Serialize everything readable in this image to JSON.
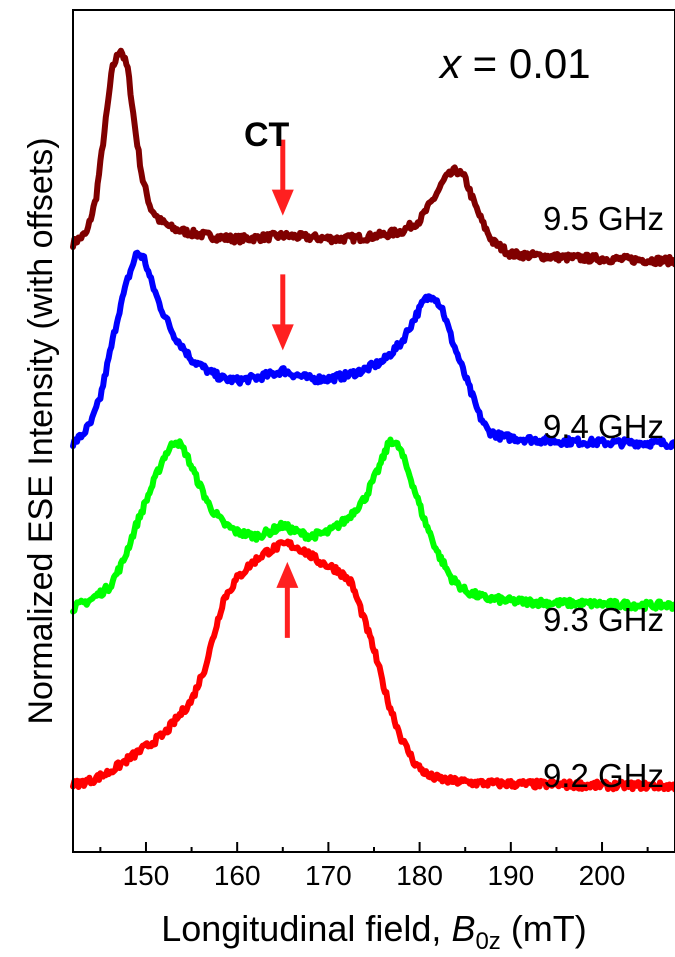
{
  "chart_data": {
    "type": "line",
    "xlabel": "Longitudinal field, ",
    "xlabel_var": "B",
    "xlabel_sub": "0z",
    "xlabel_unit": " (mT)",
    "ylabel": "Normalized ESE Intensity (with offsets)",
    "xlim": [
      142,
      208
    ],
    "ylim": [
      0,
      1
    ],
    "x_ticks": [
      "150",
      "160",
      "170",
      "180",
      "190",
      "200"
    ],
    "x_tick_values": [
      150,
      160,
      170,
      180,
      190,
      200
    ],
    "y_ticks": [],
    "grid": false,
    "composition_label": "x = 0.01",
    "composition_var": "x",
    "composition_value": " = 0.01",
    "ct_label": "CT",
    "ct_field": 165,
    "series": [
      {
        "name": "9.5 GHz",
        "color": "#800000",
        "points": [
          [
            142,
            0.723
          ],
          [
            143.5,
            0.735
          ],
          [
            144.5,
            0.775
          ],
          [
            145.5,
            0.86
          ],
          [
            146.3,
            0.93
          ],
          [
            147.2,
            0.955
          ],
          [
            148,
            0.93
          ],
          [
            148.8,
            0.86
          ],
          [
            149.6,
            0.8
          ],
          [
            150.5,
            0.765
          ],
          [
            151.5,
            0.75
          ],
          [
            153,
            0.74
          ],
          [
            155,
            0.735
          ],
          [
            158,
            0.73
          ],
          [
            160,
            0.728
          ],
          [
            163,
            0.73
          ],
          [
            165,
            0.732
          ],
          [
            168,
            0.73
          ],
          [
            171,
            0.728
          ],
          [
            174,
            0.73
          ],
          [
            176,
            0.733
          ],
          [
            178,
            0.737
          ],
          [
            180,
            0.75
          ],
          [
            181.5,
            0.775
          ],
          [
            182.8,
            0.8
          ],
          [
            184,
            0.81
          ],
          [
            185,
            0.8
          ],
          [
            186,
            0.77
          ],
          [
            187,
            0.745
          ],
          [
            188,
            0.725
          ],
          [
            190,
            0.71
          ],
          [
            193,
            0.708
          ],
          [
            196,
            0.706
          ],
          [
            199,
            0.705
          ],
          [
            202,
            0.704
          ],
          [
            205,
            0.703
          ],
          [
            208,
            0.702
          ]
        ]
      },
      {
        "name": "9.4 GHz",
        "color": "#0000ff",
        "points": [
          [
            142,
            0.485
          ],
          [
            143,
            0.495
          ],
          [
            144,
            0.51
          ],
          [
            145,
            0.54
          ],
          [
            146,
            0.59
          ],
          [
            147,
            0.64
          ],
          [
            148,
            0.68
          ],
          [
            149,
            0.712
          ],
          [
            149.8,
            0.705
          ],
          [
            150.5,
            0.68
          ],
          [
            151.5,
            0.65
          ],
          [
            153,
            0.615
          ],
          [
            155,
            0.585
          ],
          [
            157,
            0.57
          ],
          [
            158.5,
            0.562
          ],
          [
            160,
            0.56
          ],
          [
            162,
            0.563
          ],
          [
            164,
            0.568
          ],
          [
            165,
            0.572
          ],
          [
            166,
            0.568
          ],
          [
            168,
            0.562
          ],
          [
            170,
            0.562
          ],
          [
            172,
            0.566
          ],
          [
            174,
            0.573
          ],
          [
            176,
            0.583
          ],
          [
            178,
            0.605
          ],
          [
            179.5,
            0.635
          ],
          [
            180.5,
            0.655
          ],
          [
            181.5,
            0.662
          ],
          [
            182.5,
            0.645
          ],
          [
            183.5,
            0.61
          ],
          [
            185,
            0.565
          ],
          [
            186.5,
            0.52
          ],
          [
            187.5,
            0.5
          ],
          [
            189,
            0.493
          ],
          [
            192,
            0.49
          ],
          [
            195,
            0.488
          ],
          [
            198,
            0.487
          ],
          [
            201,
            0.486
          ],
          [
            204,
            0.486
          ],
          [
            208,
            0.485
          ]
        ]
      },
      {
        "name": "9.3 GHz",
        "color": "#00ff00",
        "points": [
          [
            142,
            0.29
          ],
          [
            144,
            0.3
          ],
          [
            146,
            0.315
          ],
          [
            147.5,
            0.345
          ],
          [
            149,
            0.39
          ],
          [
            150.5,
            0.43
          ],
          [
            152,
            0.47
          ],
          [
            153.3,
            0.49
          ],
          [
            154.3,
            0.475
          ],
          [
            155.5,
            0.445
          ],
          [
            157,
            0.41
          ],
          [
            158.5,
            0.39
          ],
          [
            160,
            0.38
          ],
          [
            162,
            0.375
          ],
          [
            163.5,
            0.38
          ],
          [
            165,
            0.388
          ],
          [
            166.5,
            0.38
          ],
          [
            168,
            0.375
          ],
          [
            170,
            0.38
          ],
          [
            172,
            0.395
          ],
          [
            174,
            0.42
          ],
          [
            175.5,
            0.455
          ],
          [
            176.8,
            0.49
          ],
          [
            177.8,
            0.48
          ],
          [
            179,
            0.445
          ],
          [
            180.5,
            0.395
          ],
          [
            182,
            0.355
          ],
          [
            183.5,
            0.325
          ],
          [
            185,
            0.31
          ],
          [
            187,
            0.302
          ],
          [
            190,
            0.298
          ],
          [
            194,
            0.296
          ],
          [
            198,
            0.295
          ],
          [
            202,
            0.294
          ],
          [
            205,
            0.293
          ],
          [
            208,
            0.293
          ]
        ]
      },
      {
        "name": "9.2 GHz",
        "color": "#ff0000",
        "points": [
          [
            142,
            0.08
          ],
          [
            144,
            0.085
          ],
          [
            146,
            0.095
          ],
          [
            148,
            0.11
          ],
          [
            150,
            0.125
          ],
          [
            152,
            0.14
          ],
          [
            153.5,
            0.16
          ],
          [
            155,
            0.18
          ],
          [
            156.5,
            0.22
          ],
          [
            157.5,
            0.26
          ],
          [
            158.5,
            0.3
          ],
          [
            160,
            0.325
          ],
          [
            161.5,
            0.342
          ],
          [
            163,
            0.355
          ],
          [
            164.5,
            0.363
          ],
          [
            165.5,
            0.366
          ],
          [
            167,
            0.36
          ],
          [
            169,
            0.345
          ],
          [
            171,
            0.335
          ],
          [
            172.5,
            0.32
          ],
          [
            173.5,
            0.29
          ],
          [
            175,
            0.24
          ],
          [
            176.5,
            0.18
          ],
          [
            178,
            0.135
          ],
          [
            179.5,
            0.105
          ],
          [
            181,
            0.09
          ],
          [
            183,
            0.085
          ],
          [
            186,
            0.082
          ],
          [
            190,
            0.081
          ],
          [
            195,
            0.08
          ],
          [
            200,
            0.079
          ],
          [
            204,
            0.079
          ],
          [
            208,
            0.078
          ]
        ]
      }
    ],
    "arrows": [
      {
        "series": "9.5 GHz",
        "direction": "down",
        "field": 165
      },
      {
        "series": "9.4 GHz",
        "direction": "down",
        "field": 165
      },
      {
        "series": "9.2 GHz",
        "direction": "up",
        "field": 165.5
      }
    ],
    "colors": {
      "arrow": "#ff2020",
      "axis": "#000000"
    }
  }
}
